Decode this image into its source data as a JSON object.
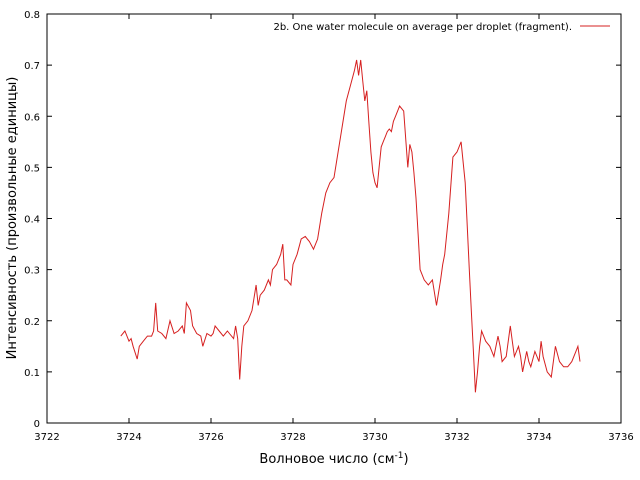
{
  "chart_data": {
    "type": "line",
    "xlabel": "Волновое число (см",
    "xlabel_sup": "-1",
    "xlabel_end": ")",
    "ylabel": "Интенсивность (произвольные единицы)",
    "xlim": [
      3722,
      3736
    ],
    "ylim": [
      0,
      0.8
    ],
    "xticks": [
      3722,
      3724,
      3726,
      3728,
      3730,
      3732,
      3734,
      3736
    ],
    "yticks": [
      0,
      0.1,
      0.2,
      0.3,
      0.4,
      0.5,
      0.6,
      0.7,
      0.8
    ],
    "grid": false,
    "legend_position": "top-right",
    "colors": {
      "series": "#d62020"
    },
    "series": [
      {
        "name": "2b. One water molecule on average per droplet (fragment).",
        "x": [
          3723.8,
          3723.9,
          3724.0,
          3724.05,
          3724.1,
          3724.2,
          3724.25,
          3724.35,
          3724.45,
          3724.55,
          3724.6,
          3724.65,
          3724.7,
          3724.8,
          3724.9,
          3725.0,
          3725.1,
          3725.2,
          3725.3,
          3725.35,
          3725.4,
          3725.5,
          3725.55,
          3725.65,
          3725.75,
          3725.8,
          3725.9,
          3726.0,
          3726.05,
          3726.1,
          3726.2,
          3726.3,
          3726.4,
          3726.45,
          3726.55,
          3726.6,
          3726.65,
          3726.7,
          3726.75,
          3726.8,
          3726.9,
          3727.0,
          3727.1,
          3727.15,
          3727.2,
          3727.3,
          3727.4,
          3727.45,
          3727.5,
          3727.6,
          3727.7,
          3727.75,
          3727.8,
          3727.85,
          3727.95,
          3728.0,
          3728.1,
          3728.2,
          3728.3,
          3728.35,
          3728.4,
          3728.5,
          3728.6,
          3728.7,
          3728.8,
          3728.9,
          3729.0,
          3729.1,
          3729.2,
          3729.3,
          3729.4,
          3729.5,
          3729.55,
          3729.6,
          3729.65,
          3729.7,
          3729.75,
          3729.8,
          3729.85,
          3729.9,
          3729.95,
          3730.0,
          3730.05,
          3730.1,
          3730.15,
          3730.2,
          3730.25,
          3730.3,
          3730.35,
          3730.4,
          3730.45,
          3730.5,
          3730.55,
          3730.6,
          3730.7,
          3730.8,
          3730.85,
          3730.9,
          3730.95,
          3731.0,
          3731.05,
          3731.1,
          3731.2,
          3731.3,
          3731.4,
          3731.5,
          3731.6,
          3731.65,
          3731.7,
          3731.8,
          3731.9,
          3732.0,
          3732.1,
          3732.2,
          3732.3,
          3732.35,
          3732.4,
          3732.45,
          3732.5,
          3732.55,
          3732.6,
          3732.7,
          3732.8,
          3732.9,
          3733.0,
          3733.05,
          3733.1,
          3733.2,
          3733.3,
          3733.35,
          3733.4,
          3733.5,
          3733.55,
          3733.6,
          3733.7,
          3733.75,
          3733.8,
          3733.9,
          3734.0,
          3734.05,
          3734.1,
          3734.2,
          3734.3,
          3734.4,
          3734.5,
          3734.6,
          3734.7,
          3734.8,
          3734.9,
          3734.95,
          3735.0
        ],
        "y": [
          0.17,
          0.18,
          0.16,
          0.165,
          0.15,
          0.125,
          0.15,
          0.16,
          0.17,
          0.17,
          0.18,
          0.235,
          0.18,
          0.175,
          0.165,
          0.2,
          0.175,
          0.18,
          0.19,
          0.175,
          0.235,
          0.22,
          0.19,
          0.175,
          0.17,
          0.15,
          0.175,
          0.17,
          0.175,
          0.19,
          0.18,
          0.17,
          0.18,
          0.175,
          0.165,
          0.19,
          0.165,
          0.085,
          0.15,
          0.19,
          0.2,
          0.22,
          0.27,
          0.23,
          0.25,
          0.26,
          0.28,
          0.27,
          0.3,
          0.31,
          0.33,
          0.35,
          0.28,
          0.28,
          0.27,
          0.31,
          0.33,
          0.36,
          0.365,
          0.36,
          0.355,
          0.34,
          0.36,
          0.41,
          0.45,
          0.47,
          0.48,
          0.53,
          0.58,
          0.63,
          0.66,
          0.69,
          0.71,
          0.68,
          0.71,
          0.67,
          0.63,
          0.65,
          0.59,
          0.53,
          0.49,
          0.47,
          0.46,
          0.5,
          0.54,
          0.55,
          0.56,
          0.57,
          0.575,
          0.57,
          0.59,
          0.6,
          0.61,
          0.62,
          0.61,
          0.5,
          0.545,
          0.53,
          0.49,
          0.44,
          0.37,
          0.3,
          0.28,
          0.27,
          0.28,
          0.23,
          0.28,
          0.31,
          0.33,
          0.41,
          0.52,
          0.53,
          0.55,
          0.47,
          0.3,
          0.22,
          0.14,
          0.06,
          0.1,
          0.15,
          0.18,
          0.16,
          0.15,
          0.13,
          0.17,
          0.15,
          0.12,
          0.13,
          0.19,
          0.16,
          0.13,
          0.15,
          0.13,
          0.1,
          0.14,
          0.12,
          0.11,
          0.14,
          0.12,
          0.16,
          0.13,
          0.1,
          0.09,
          0.15,
          0.12,
          0.11,
          0.11,
          0.12,
          0.14,
          0.15,
          0.12
        ]
      }
    ]
  }
}
